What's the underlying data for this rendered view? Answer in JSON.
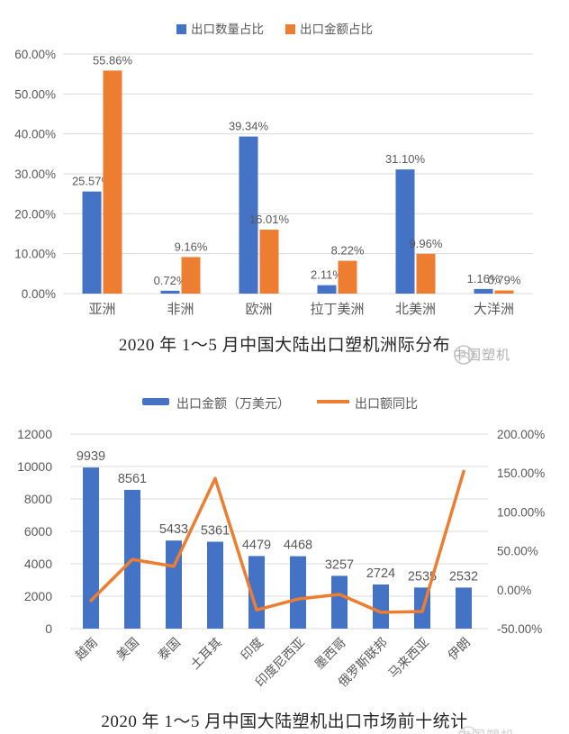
{
  "page": {
    "background": "#ffffff"
  },
  "theme": {
    "blue": "#4472C4",
    "orange": "#ED7D31",
    "grid": "#D9D9D9",
    "axis_text": "#595959",
    "title_color": "#262626",
    "watermark_color": "#a8a8a8"
  },
  "watermark": {
    "text": "中国塑机",
    "icon": "brand-logo-icon"
  },
  "chart_data": [
    {
      "type": "bar",
      "title": "2020 年 1～5 月中国大陆出口塑机洲际分布",
      "legend_position": "top",
      "grid": true,
      "categories": [
        "亚洲",
        "非洲",
        "欧洲",
        "拉丁美洲",
        "北美洲",
        "大洋洲"
      ],
      "series": [
        {
          "name": "出口数量占比",
          "color": "#4472C4",
          "values": [
            25.57,
            0.72,
            39.34,
            2.11,
            31.1,
            1.16
          ],
          "labels": [
            "25.57%",
            "0.72%",
            "39.34%",
            "2.11%",
            "31.10%",
            "1.16%"
          ]
        },
        {
          "name": "出口金额占比",
          "color": "#ED7D31",
          "values": [
            55.86,
            9.16,
            16.01,
            8.22,
            9.96,
            0.79
          ],
          "labels": [
            "55.86%",
            "9.16%",
            "16.01%",
            "8.22%",
            "9.96%",
            "0.79%"
          ]
        }
      ],
      "ylim": [
        0,
        60
      ],
      "y_ticks": [
        {
          "v": 0,
          "label": "0.00%"
        },
        {
          "v": 10,
          "label": "10.00%"
        },
        {
          "v": 20,
          "label": "20.00%"
        },
        {
          "v": 30,
          "label": "30.00%"
        },
        {
          "v": 40,
          "label": "40.00%"
        },
        {
          "v": 50,
          "label": "50.00%"
        },
        {
          "v": 60,
          "label": "60.00%"
        }
      ]
    },
    {
      "type": "bar-line-combo",
      "title": "2020 年 1～5 月中国大陆塑机出口市场前十统计",
      "legend_position": "top",
      "grid": true,
      "categories": [
        "越南",
        "美国",
        "泰国",
        "土耳其",
        "印度",
        "印度尼西亚",
        "墨西哥",
        "俄罗斯联邦",
        "马来西亚",
        "伊朗"
      ],
      "bar_series": {
        "name": "出口金额（万美元）",
        "color": "#4472C4",
        "values": [
          9939,
          8561,
          5433,
          5361,
          4479,
          4468,
          3257,
          2724,
          2535,
          2532
        ],
        "labels": [
          "9939",
          "8561",
          "5433",
          "5361",
          "4479",
          "4468",
          "3257",
          "2724",
          "2535",
          "2532"
        ]
      },
      "line_series": {
        "name": "出口额同比",
        "color": "#ED7D31",
        "axis": "right",
        "values_pct_estimated": [
          -14,
          39,
          30,
          143,
          -26,
          -12,
          -6,
          -29,
          -28,
          152
        ]
      },
      "left_axis": {
        "range": [
          0,
          12000
        ],
        "ticks": [
          {
            "v": 0,
            "label": "0"
          },
          {
            "v": 2000,
            "label": "2000"
          },
          {
            "v": 4000,
            "label": "4000"
          },
          {
            "v": 6000,
            "label": "6000"
          },
          {
            "v": 8000,
            "label": "8000"
          },
          {
            "v": 10000,
            "label": "10000"
          },
          {
            "v": 12000,
            "label": "12000"
          }
        ]
      },
      "right_axis": {
        "range": [
          -50,
          200
        ],
        "ticks": [
          {
            "p": -50,
            "label": "-50.00%"
          },
          {
            "p": 0,
            "label": "0.00%"
          },
          {
            "p": 50,
            "label": "50.00%"
          },
          {
            "p": 100,
            "label": "100.00%"
          },
          {
            "p": 150,
            "label": "150.00%"
          },
          {
            "p": 200,
            "label": "200.00%"
          }
        ]
      }
    }
  ]
}
